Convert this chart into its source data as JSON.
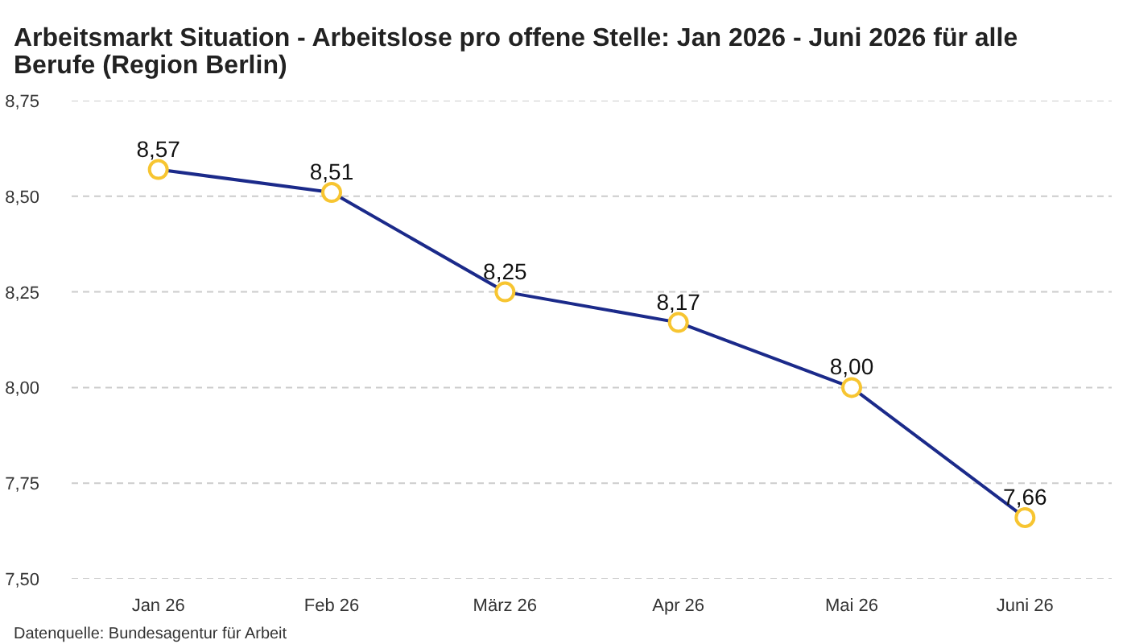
{
  "chart_data": {
    "type": "line",
    "title": "Arbeitsmarkt Situation - Arbeitslose pro offene Stelle: Jan 2026 - Juni 2026 für alle Berufe (Region Berlin)",
    "categories": [
      "Jan 26",
      "Feb 26",
      "März 26",
      "Apr 26",
      "Mai 26",
      "Juni 26"
    ],
    "series": [
      {
        "color": "#1b2a8a",
        "values": [
          8.57,
          8.51,
          8.25,
          8.17,
          8.0,
          7.66
        ],
        "value_labels": [
          "8,57",
          "8,51",
          "8,25",
          "8,17",
          "8,00",
          "7,66"
        ]
      }
    ],
    "ylim": [
      7.5,
      8.75
    ],
    "yticks": [
      {
        "value": 7.5,
        "label": "7,50"
      },
      {
        "value": 7.75,
        "label": "7,75"
      },
      {
        "value": 8.0,
        "label": "8,00"
      },
      {
        "value": 8.25,
        "label": "8,25"
      },
      {
        "value": 8.5,
        "label": "8,50"
      },
      {
        "value": 8.75,
        "label": "8,75"
      }
    ],
    "grid": "y",
    "marker": "circle",
    "line_style": "solid",
    "annotations": [
      "Datenquelle: Bundesagentur für Arbeit"
    ]
  }
}
